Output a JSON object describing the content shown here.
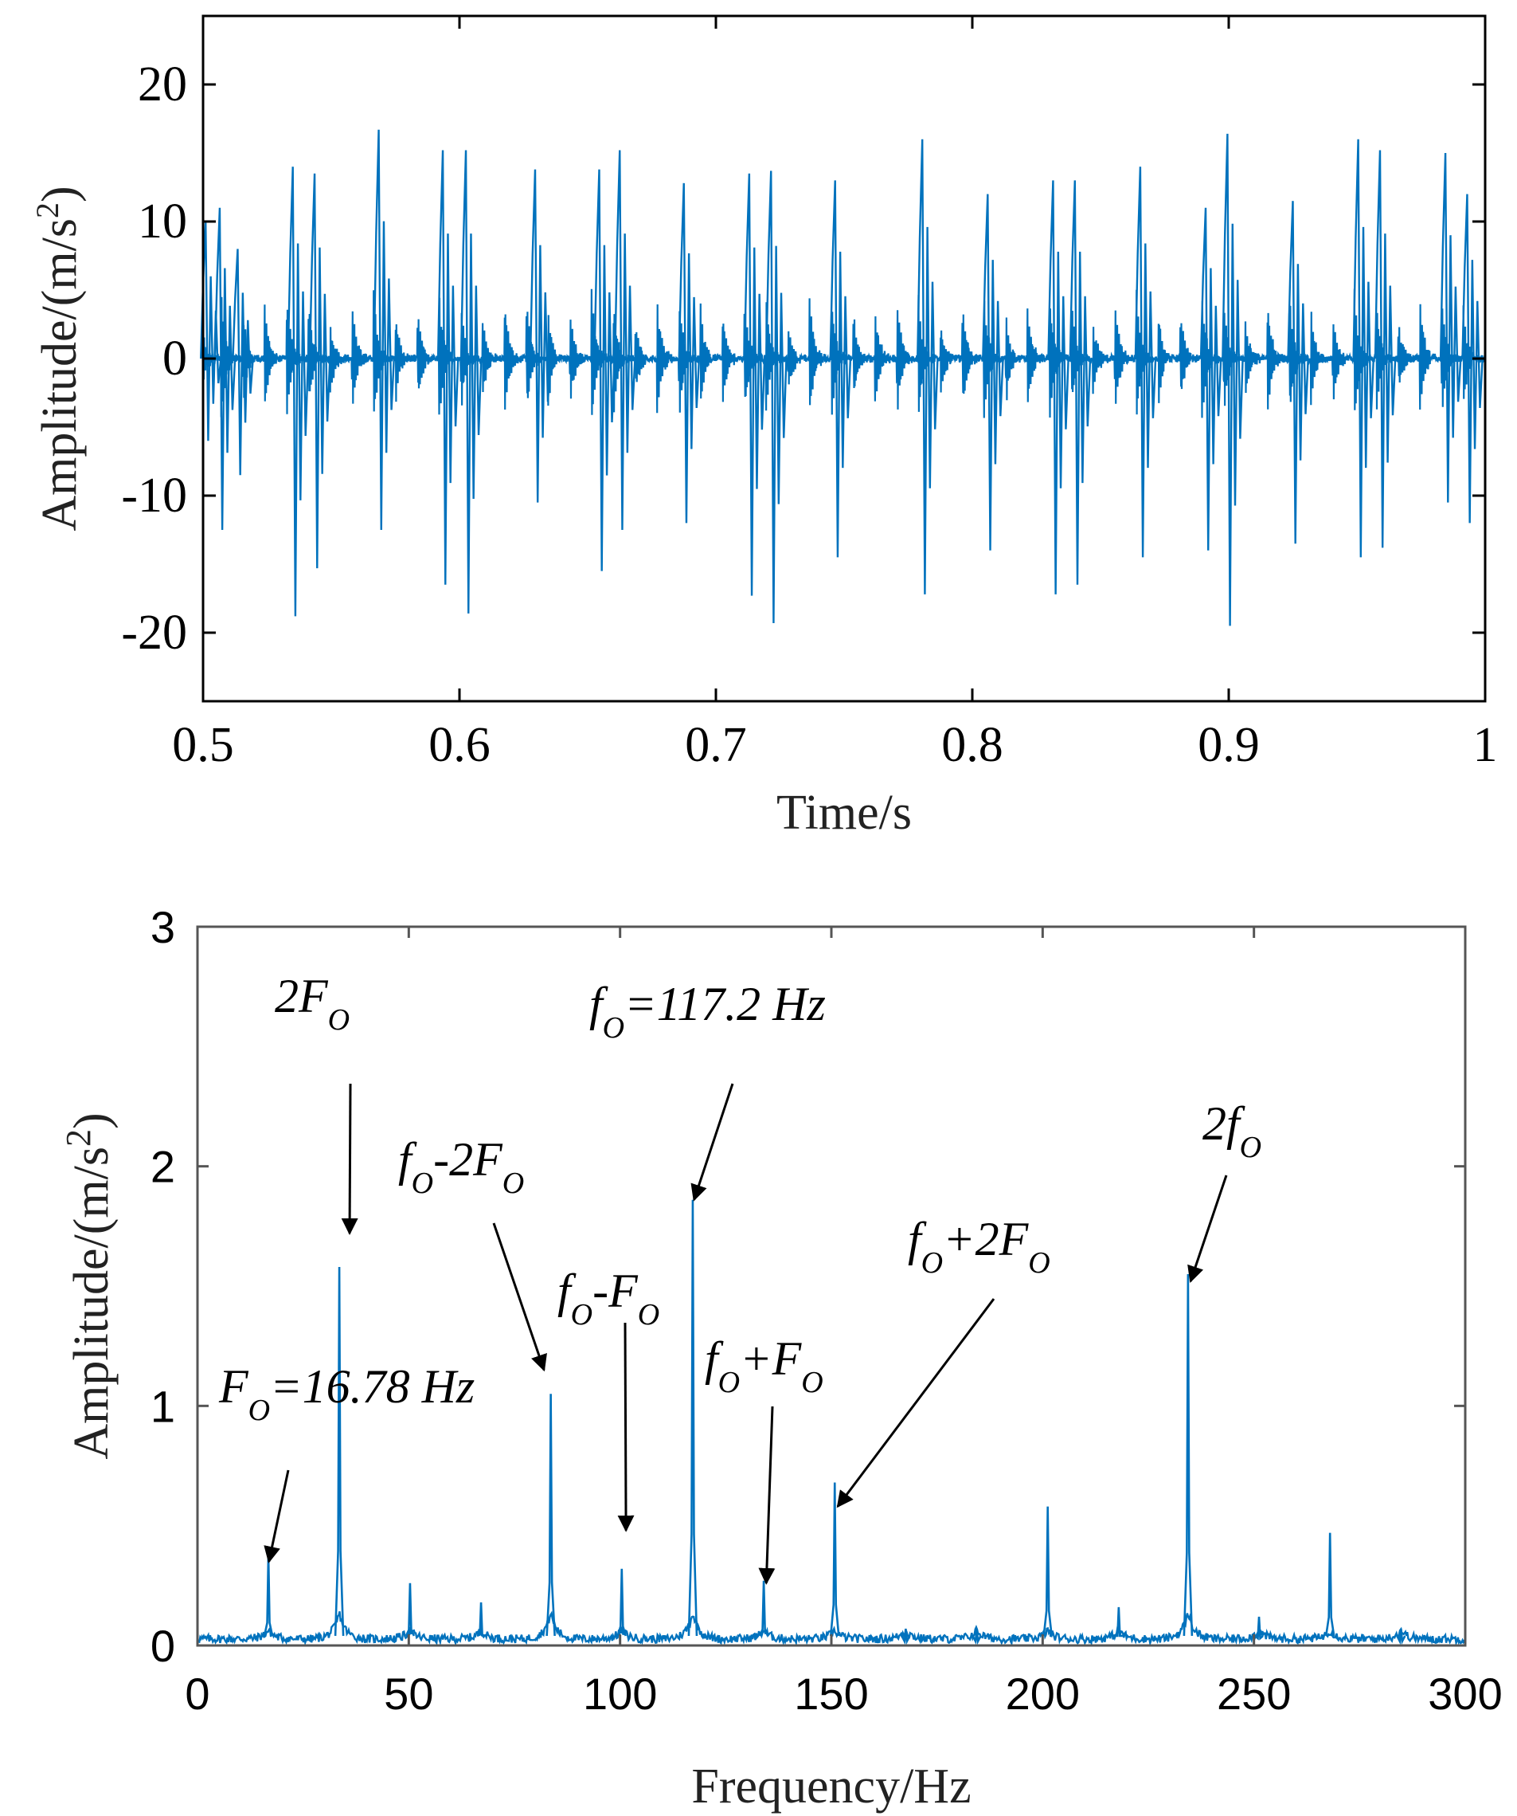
{
  "chart_data": [
    {
      "type": "line",
      "title": "",
      "xlabel": "Time/s",
      "ylabel": "Amplitude/(m/s",
      "ylabel_sup": "2",
      "ylabel_close": ")",
      "xlim": [
        0.5,
        1.0
      ],
      "ylim": [
        -25,
        25
      ],
      "xticks": [
        0.5,
        0.6,
        0.7,
        0.8,
        0.9,
        1.0
      ],
      "xtick_labels": [
        "0.5",
        "0.6",
        "0.7",
        "0.8",
        "0.9",
        "1"
      ],
      "yticks": [
        20,
        10,
        0,
        -10,
        -20
      ],
      "ytick_labels": [
        "20",
        "10",
        "0",
        "-10",
        "-20"
      ],
      "grid": false,
      "series_color": "#0072BD",
      "impulse_period_s": 0.0085,
      "impulse_decay_s": 0.0016,
      "carrier_hz": 2800,
      "peak_events": [
        {
          "t": 0.501,
          "max": 10,
          "min": -6
        },
        {
          "t": 0.5065,
          "max": 11,
          "min": -12.5
        },
        {
          "t": 0.5135,
          "max": 8,
          "min": -8.5
        },
        {
          "t": 0.535,
          "max": 14,
          "min": -18.8
        },
        {
          "t": 0.5435,
          "max": 13.5,
          "min": -15.3
        },
        {
          "t": 0.5685,
          "max": 16.7,
          "min": -12.5
        },
        {
          "t": 0.5935,
          "max": 15.2,
          "min": -16.5
        },
        {
          "t": 0.6025,
          "max": 15.2,
          "min": -18.6
        },
        {
          "t": 0.6295,
          "max": 13.8,
          "min": -10.5
        },
        {
          "t": 0.6545,
          "max": 13.8,
          "min": -15.5
        },
        {
          "t": 0.6625,
          "max": 15.2,
          "min": -12.5
        },
        {
          "t": 0.6875,
          "max": 12.8,
          "min": -12
        },
        {
          "t": 0.713,
          "max": 13.5,
          "min": -17.3
        },
        {
          "t": 0.7215,
          "max": 13.7,
          "min": -19.3
        },
        {
          "t": 0.7465,
          "max": 13,
          "min": -14.5
        },
        {
          "t": 0.7805,
          "max": 16,
          "min": -17.2
        },
        {
          "t": 0.806,
          "max": 12,
          "min": -14
        },
        {
          "t": 0.8315,
          "max": 13,
          "min": -17.2
        },
        {
          "t": 0.84,
          "max": 13,
          "min": -16.5
        },
        {
          "t": 0.8655,
          "max": 14,
          "min": -14.5
        },
        {
          "t": 0.891,
          "max": 11,
          "min": -14
        },
        {
          "t": 0.8995,
          "max": 16.4,
          "min": -19.5
        },
        {
          "t": 0.925,
          "max": 11.5,
          "min": -13.5
        },
        {
          "t": 0.9505,
          "max": 16,
          "min": -14.5
        },
        {
          "t": 0.959,
          "max": 15.2,
          "min": -13.8
        },
        {
          "t": 0.9845,
          "max": 15,
          "min": -10.5
        },
        {
          "t": 0.993,
          "max": 12,
          "min": -12
        }
      ]
    },
    {
      "type": "line",
      "title": "",
      "xlabel": "Frequency/Hz",
      "ylabel": "Amplitude/(m/s",
      "ylabel_sup": "2",
      "ylabel_close": ")",
      "xlim": [
        0,
        300
      ],
      "ylim": [
        0,
        3
      ],
      "xticks": [
        0,
        50,
        100,
        150,
        200,
        250,
        300
      ],
      "xtick_labels": [
        "0",
        "50",
        "100",
        "150",
        "200",
        "250",
        "300"
      ],
      "yticks": [
        0,
        1,
        2,
        3
      ],
      "ytick_labels": [
        "0",
        "1",
        "2",
        "3"
      ],
      "grid": false,
      "series_color": "#0072BD",
      "peaks": [
        {
          "f": 16.78,
          "a": 0.38
        },
        {
          "f": 33.56,
          "a": 1.58
        },
        {
          "f": 50.3,
          "a": 0.26
        },
        {
          "f": 67.1,
          "a": 0.18
        },
        {
          "f": 83.6,
          "a": 1.05
        },
        {
          "f": 100.4,
          "a": 0.32
        },
        {
          "f": 117.2,
          "a": 1.86
        },
        {
          "f": 134.0,
          "a": 0.27
        },
        {
          "f": 150.8,
          "a": 0.68
        },
        {
          "f": 167.6,
          "a": 0.07
        },
        {
          "f": 184.4,
          "a": 0.07
        },
        {
          "f": 201.2,
          "a": 0.58
        },
        {
          "f": 218.0,
          "a": 0.16
        },
        {
          "f": 234.4,
          "a": 1.55
        },
        {
          "f": 251.2,
          "a": 0.12
        },
        {
          "f": 268.0,
          "a": 0.47
        },
        {
          "f": 284.8,
          "a": 0.07
        }
      ],
      "annotations": [
        {
          "id": "Fo",
          "main": "F",
          "sub": "O",
          "rest": "=16.78 Hz",
          "target_f": 16.9,
          "target_a": 0.35
        },
        {
          "id": "2Fo",
          "main": "2F",
          "sub": "O",
          "rest": "",
          "target_f": 36.0,
          "target_a": 1.72
        },
        {
          "id": "fo-2Fo",
          "main": "f",
          "sub": "O",
          "rest": "-2F",
          "sub2": "O",
          "target_f": 82.0,
          "target_a": 1.15
        },
        {
          "id": "fo",
          "main": "f",
          "sub": "O",
          "rest": "=117.2 Hz",
          "target_f": 117.5,
          "target_a": 1.86
        },
        {
          "id": "fo-Fo",
          "main": "f",
          "sub": "O",
          "rest": "-F",
          "sub2": "O",
          "target_f": 101.4,
          "target_a": 0.48
        },
        {
          "id": "fo+Fo",
          "main": "f",
          "sub": "O",
          "rest": "+F",
          "sub2": "O",
          "target_f": 134.6,
          "target_a": 0.26
        },
        {
          "id": "fo+2Fo",
          "main": "f",
          "sub": "O",
          "rest": "+2F",
          "sub2": "O",
          "target_f": 151.5,
          "target_a": 0.58
        },
        {
          "id": "2fo",
          "main": "2f",
          "sub": "O",
          "rest": "",
          "target_f": 235.0,
          "target_a": 1.52
        }
      ]
    }
  ]
}
